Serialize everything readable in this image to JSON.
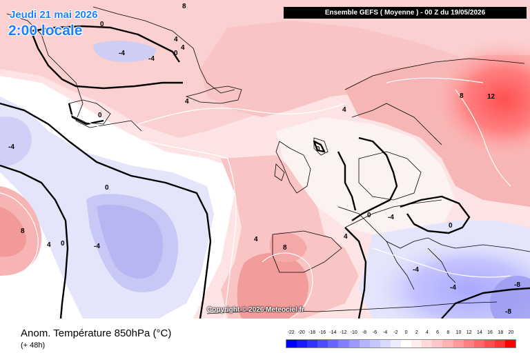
{
  "header": {
    "date": "Jeudi 21 mai 2026",
    "time": "2:00 locale",
    "run": "Ensemble GEFS  ( Moyenne )  -  00 Z du 19/05/2026"
  },
  "copyright": "Copyright © 2026 Meteociel.fr",
  "footer": {
    "parameter": "Anom. Température 850hPa (°C)",
    "lead": "(+ 48h)"
  },
  "legend": {
    "labels": [
      "-22",
      "-20",
      "-18",
      "-16",
      "-14",
      "-12",
      "-10",
      "-8",
      "-6",
      "-4",
      "-2",
      "0",
      "2",
      "4",
      "6",
      "8",
      "10",
      "12",
      "14",
      "16",
      "18",
      "20"
    ],
    "colors": [
      "#0000ff",
      "#1a1aff",
      "#3333ff",
      "#4d4dff",
      "#6666ff",
      "#7f7fff",
      "#9999ff",
      "#b3b3ff",
      "#c6c6ff",
      "#d9d9ff",
      "#ececff",
      "#ffffff",
      "#ffecec",
      "#ffd9d9",
      "#ffc6c6",
      "#ffb3b3",
      "#ff9999",
      "#ff7f7f",
      "#ff6666",
      "#ff4d4d",
      "#ff3333",
      "#ff0000"
    ]
  },
  "map_labels": [
    {
      "id": "greenland-8",
      "text": "8"
    },
    {
      "id": "greenland-0",
      "text": "0"
    },
    {
      "id": "greenland-4",
      "text": "4"
    },
    {
      "id": "greenland-m4-a",
      "text": "-4"
    },
    {
      "id": "greenland-m4-b",
      "text": "-4"
    },
    {
      "id": "greenland-0b",
      "text": "0"
    },
    {
      "id": "greenland-4b",
      "text": "4"
    },
    {
      "id": "iceland-4",
      "text": "4"
    },
    {
      "id": "west-m4",
      "text": "-4"
    },
    {
      "id": "canada-0",
      "text": "0"
    },
    {
      "id": "atlantic-0",
      "text": "0"
    },
    {
      "id": "west-8",
      "text": "8"
    },
    {
      "id": "west-4",
      "text": "4"
    },
    {
      "id": "west-0",
      "text": "0"
    },
    {
      "id": "atlantic-m4",
      "text": "-4"
    },
    {
      "id": "biscay-4",
      "text": "4"
    },
    {
      "id": "north-4",
      "text": "4"
    },
    {
      "id": "scand-8",
      "text": "8"
    },
    {
      "id": "russia-12",
      "text": "12"
    },
    {
      "id": "uk-0",
      "text": "0"
    },
    {
      "id": "iberia-8",
      "text": "8"
    },
    {
      "id": "med-4",
      "text": "4"
    },
    {
      "id": "alps-0",
      "text": "0"
    },
    {
      "id": "balkan-4",
      "text": "-4"
    },
    {
      "id": "balkan-0",
      "text": "0"
    },
    {
      "id": "greece-m4",
      "text": "-4"
    },
    {
      "id": "turkey-m4",
      "text": "-4"
    },
    {
      "id": "east-m8",
      "text": "-8"
    },
    {
      "id": "east-m8b",
      "text": "-8"
    }
  ]
}
